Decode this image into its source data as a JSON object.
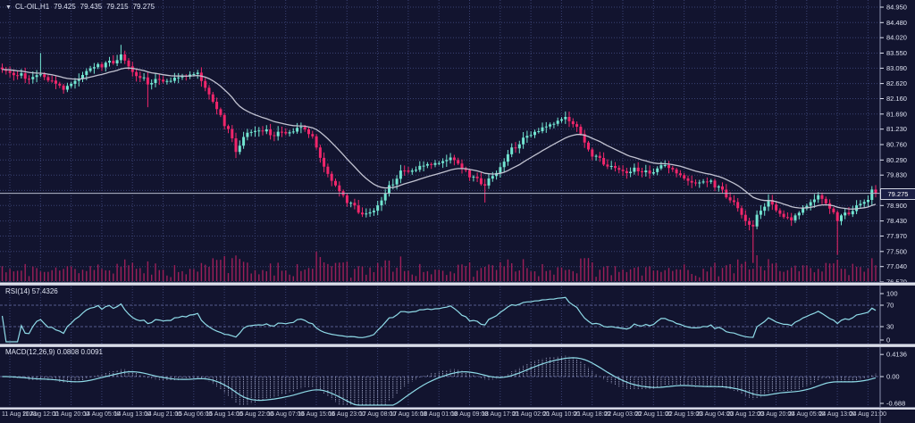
{
  "symbol": {
    "marker": "▼",
    "name": "CL-OIL,H1",
    "open": "79.425",
    "high": "79.435",
    "low": "79.215",
    "close": "79.275"
  },
  "price_badge": "79.275",
  "colors": {
    "background": "#12142f",
    "grid": "#3a4273",
    "bull": "#72e5d1",
    "bear": "#f0266b",
    "ma": "#c2c3d1",
    "volume": "#9c1f59",
    "indicator_line": "#8fdbe8",
    "histogram": "#a9aecf",
    "price_line": "#b6bacc",
    "text": "#dfe3f2",
    "badge_bg": "#1b1e44",
    "splitter": "#cfd1de"
  },
  "chart_data": {
    "type": "candlestick",
    "title": "CL-OIL,H1",
    "symbol": "CL-OIL",
    "timeframe": "H1",
    "quote": {
      "open": 79.425,
      "high": 79.435,
      "low": 79.215,
      "close": 79.275
    },
    "current_price": 79.275,
    "y_axis": {
      "min": 76.57,
      "max": 84.95,
      "ticks": [
        "84.950",
        "84.480",
        "84.020",
        "83.550",
        "83.090",
        "82.620",
        "82.160",
        "81.690",
        "81.230",
        "80.760",
        "80.290",
        "79.830",
        "79.360",
        "78.900",
        "78.430",
        "77.970",
        "77.500",
        "77.040",
        "76.570"
      ]
    },
    "x_axis": {
      "labels": [
        "11 Aug 2023",
        "11 Aug 12:00",
        "11 Aug 20:00",
        "14 Aug 05:00",
        "14 Aug 13:00",
        "14 Aug 21:00",
        "15 Aug 06:00",
        "15 Aug 14:00",
        "15 Aug 22:00",
        "16 Aug 07:00",
        "16 Aug 15:00",
        "16 Aug 23:00",
        "17 Aug 08:00",
        "17 Aug 16:00",
        "18 Aug 01:00",
        "18 Aug 09:00",
        "18 Aug 17:00",
        "21 Aug 02:00",
        "21 Aug 10:00",
        "21 Aug 18:00",
        "22 Aug 03:00",
        "22 Aug 11:00",
        "22 Aug 19:00",
        "23 Aug 04:00",
        "23 Aug 12:00",
        "23 Aug 20:00",
        "24 Aug 05:00",
        "24 Aug 13:00",
        "24 Aug 21:00"
      ]
    },
    "candle_count": 229,
    "close_anchors": [
      [
        0,
        83.05
      ],
      [
        8,
        82.75
      ],
      [
        10,
        82.95
      ],
      [
        16,
        82.45
      ],
      [
        22,
        82.95
      ],
      [
        25,
        83.15
      ],
      [
        29,
        83.3
      ],
      [
        31,
        83.45
      ],
      [
        34,
        83.0
      ],
      [
        38,
        82.65
      ],
      [
        43,
        82.75
      ],
      [
        48,
        82.85
      ],
      [
        51,
        82.95
      ],
      [
        55,
        82.0
      ],
      [
        59,
        81.2
      ],
      [
        61,
        80.6
      ],
      [
        64,
        81.1
      ],
      [
        67,
        81.25
      ],
      [
        71,
        81.05
      ],
      [
        74,
        81.15
      ],
      [
        78,
        81.3
      ],
      [
        81,
        81.0
      ],
      [
        83,
        80.35
      ],
      [
        86,
        79.6
      ],
      [
        89,
        79.15
      ],
      [
        93,
        78.75
      ],
      [
        95,
        78.6
      ],
      [
        97,
        78.75
      ],
      [
        100,
        79.3
      ],
      [
        104,
        79.9
      ],
      [
        109,
        80.1
      ],
      [
        114,
        80.2
      ],
      [
        117,
        80.35
      ],
      [
        120,
        80.0
      ],
      [
        123,
        79.75
      ],
      [
        126,
        79.55
      ],
      [
        129,
        79.9
      ],
      [
        132,
        80.5
      ],
      [
        136,
        80.9
      ],
      [
        139,
        81.2
      ],
      [
        143,
        81.35
      ],
      [
        147,
        81.6
      ],
      [
        150,
        81.25
      ],
      [
        153,
        80.55
      ],
      [
        156,
        80.3
      ],
      [
        159,
        80.05
      ],
      [
        163,
        79.95
      ],
      [
        166,
        80.0
      ],
      [
        169,
        79.85
      ],
      [
        172,
        80.2
      ],
      [
        176,
        79.9
      ],
      [
        179,
        79.65
      ],
      [
        182,
        79.55
      ],
      [
        185,
        79.6
      ],
      [
        187,
        79.45
      ],
      [
        190,
        79.1
      ],
      [
        192,
        78.8
      ],
      [
        194,
        78.45
      ],
      [
        196,
        78.3
      ],
      [
        198,
        78.8
      ],
      [
        200,
        79.0
      ],
      [
        203,
        78.7
      ],
      [
        206,
        78.45
      ],
      [
        208,
        78.7
      ],
      [
        211,
        79.0
      ],
      [
        213,
        79.2
      ],
      [
        215,
        78.9
      ],
      [
        218,
        78.5
      ],
      [
        221,
        78.7
      ],
      [
        223,
        78.85
      ],
      [
        226,
        79.1
      ],
      [
        227,
        79.45
      ],
      [
        228,
        79.275
      ]
    ],
    "wick_events": [
      {
        "i": 10,
        "high": 83.55
      },
      {
        "i": 31,
        "high": 83.8
      },
      {
        "i": 38,
        "low": 81.9
      },
      {
        "i": 61,
        "low": 80.35
      },
      {
        "i": 117,
        "high": 80.5
      },
      {
        "i": 126,
        "low": 78.99
      },
      {
        "i": 147,
        "high": 81.77
      },
      {
        "i": 196,
        "low": 77.15
      },
      {
        "i": 218,
        "low": 77.4
      }
    ],
    "noise": [
      0.62,
      0.18,
      0.83,
      0.45,
      0.07,
      0.91,
      0.33,
      0.56,
      0.74,
      0.12,
      0.49,
      0.88,
      0.27,
      0.65,
      0.04,
      0.95,
      0.38,
      0.71,
      0.15,
      0.58,
      0.82,
      0.29,
      0.46,
      0.09,
      0.93,
      0.52,
      0.24,
      0.67,
      0.41,
      0.86,
      0.19,
      0.6
    ],
    "moving_average_period": 21,
    "indicators": {
      "rsi": {
        "label": "RSI(14)",
        "value": "57.4326",
        "period": 14,
        "levels": [
          30,
          70
        ],
        "scale_ticks": [
          {
            "label": "100",
            "v": 100
          },
          {
            "label": "70",
            "v": 70
          },
          {
            "label": "30",
            "v": 30
          },
          {
            "label": "0",
            "v": 0
          }
        ]
      },
      "macd": {
        "label": "MACD(12,26,9)",
        "values": "0.0808 0.0091",
        "fast": 12,
        "slow": 26,
        "signal": 9,
        "scale_ticks": [
          {
            "label": "0.4136",
            "v": 0.4136
          },
          {
            "label": "0.00",
            "v": 0
          },
          {
            "label": "-0.688",
            "v": -0.688
          }
        ]
      }
    }
  }
}
